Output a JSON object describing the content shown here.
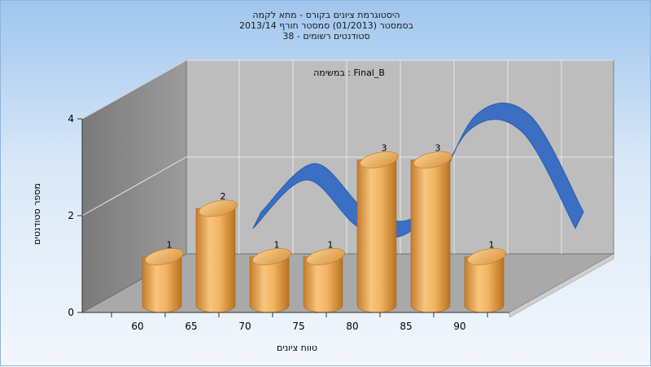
{
  "chart_data": {
    "type": "bar",
    "title_lines": [
      "היסטוגרמת ציונים בקורס - מתא לקמה",
      "בסמסטר  (01/2013)  סמסטר חורף 2013/14",
      "סטודנטים רשומים - 38"
    ],
    "annotation": "במשימה : Final_B",
    "xlabel": "טווח ציונים",
    "ylabel": "מספר סטודנטים",
    "categories": [
      "60",
      "65",
      "70",
      "75",
      "80",
      "85",
      "90"
    ],
    "values": [
      1,
      2,
      1,
      1,
      3,
      3,
      1
    ],
    "data_labels": [
      "1",
      "2",
      "1",
      "1",
      "3",
      "3",
      "1"
    ],
    "y_ticks": [
      "0",
      "2",
      "4"
    ],
    "ylim": [
      0,
      4
    ],
    "grid": true,
    "legend": "none",
    "colors": {
      "bar": "#e8a650",
      "curve": "#3a6fc4",
      "back_wall": "#bdbdbd",
      "side_wall": "#8a8a8a",
      "floor": "#a8a8a8"
    }
  }
}
